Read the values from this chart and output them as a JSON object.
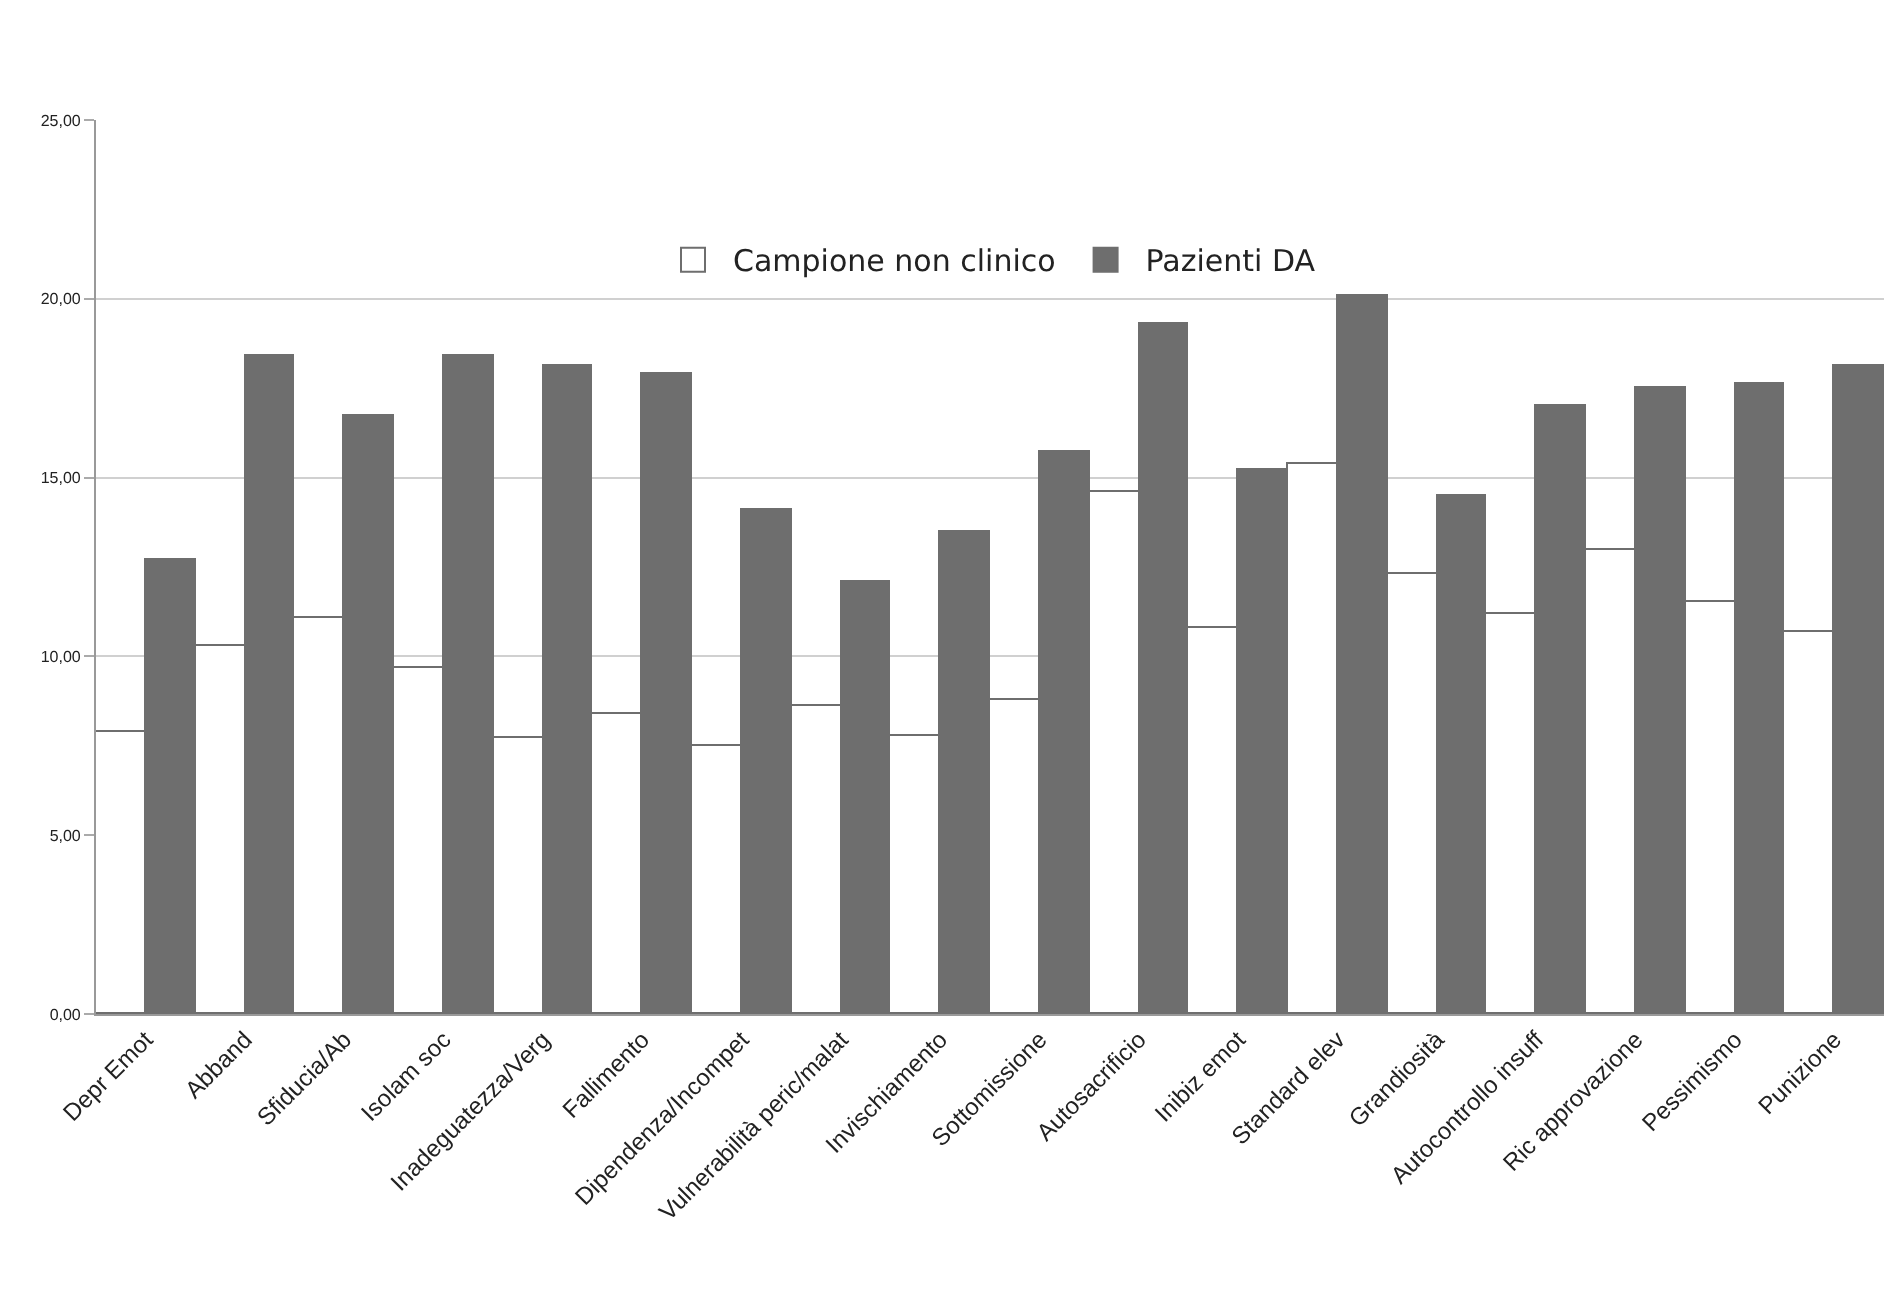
{
  "chart_data": {
    "type": "bar",
    "categories": [
      "Depr Emot",
      "Abband",
      "Sfiducia/Ab",
      "Isolam soc",
      "Inadeguatezza/Verg",
      "Fallimento",
      "Dipendenza/Incompet",
      "Vulnerabilità peric/malat",
      "Invischiamento",
      "Sottomissione",
      "Autosacrificio",
      "Inibiz emot",
      "Standard elev",
      "Grandiosità",
      "Autocontrollo insuff",
      "Ric approvazione",
      "Pessimismo",
      "Punizione"
    ],
    "series": [
      {
        "name": "Campione non clinico",
        "color": "#ffffff",
        "values": [
          7.9,
          10.3,
          11.1,
          9.7,
          7.7,
          8.4,
          7.5,
          8.6,
          7.8,
          8.8,
          14.6,
          10.8,
          15.4,
          12.3,
          11.2,
          13.0,
          11.5,
          10.7
        ]
      },
      {
        "name": "Pazienti DA",
        "color": "#6e6e6e",
        "values": [
          12.7,
          18.4,
          16.7,
          18.4,
          18.1,
          17.9,
          14.1,
          12.1,
          13.5,
          15.7,
          19.3,
          15.2,
          20.1,
          14.5,
          17.0,
          17.5,
          17.6,
          18.1
        ]
      }
    ],
    "ylim": [
      0,
      25
    ],
    "yticks": [
      {
        "value": 0,
        "label": "0,00"
      },
      {
        "value": 5,
        "label": "5,00"
      },
      {
        "value": 10,
        "label": "10,00"
      },
      {
        "value": 15,
        "label": "15,00"
      },
      {
        "value": 20,
        "label": "20,00"
      },
      {
        "value": 25,
        "label": "25,00"
      }
    ],
    "grid": "y",
    "legend": "top"
  }
}
